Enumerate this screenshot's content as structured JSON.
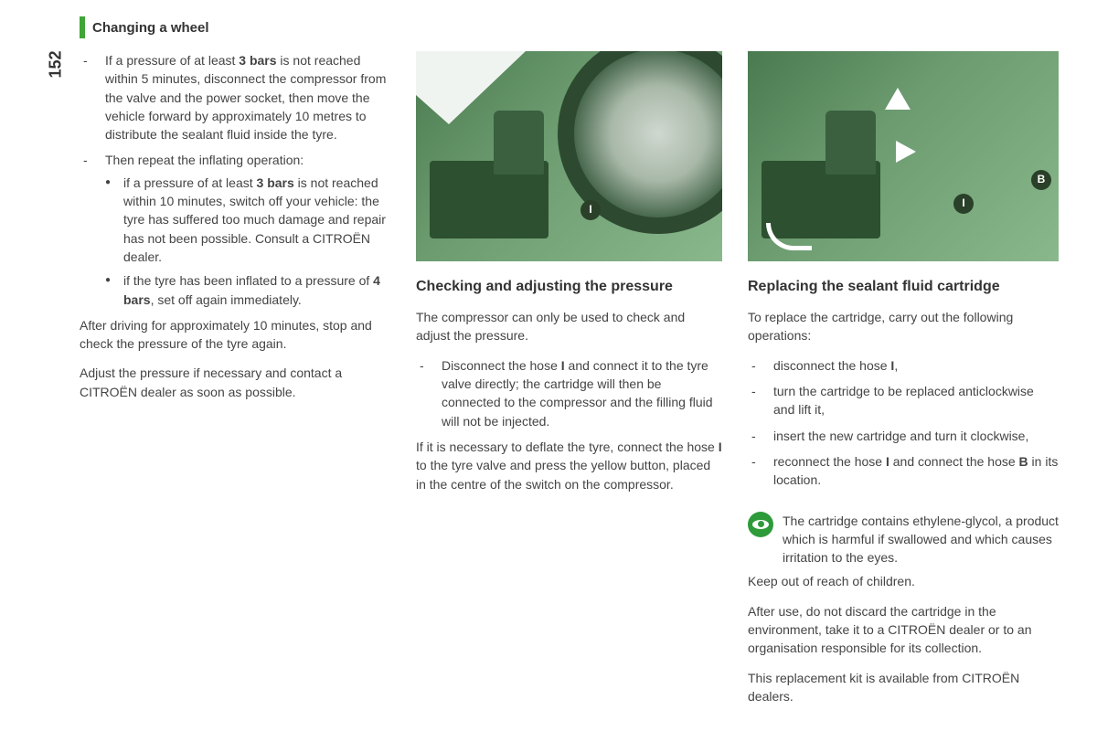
{
  "page_number": "152",
  "header": "Changing a wheel",
  "col1": {
    "item1_pre": "If a pressure of at least ",
    "item1_b1": "3 bars",
    "item1_post": " is not reached within 5 minutes, disconnect the compressor from the valve and the power socket, then move the vehicle forward by approximately 10 metres to distribute the sealant fluid inside the tyre.",
    "item2": "Then repeat the inflating operation:",
    "sub1_pre": "if a pressure of at least ",
    "sub1_b": "3 bars",
    "sub1_post": " is not reached within 10 minutes, switch off your vehicle: the tyre has suffered too much damage and repair has not been possible. Consult a CITROËN dealer.",
    "sub2_pre": "if the tyre has been inflated to a pressure of ",
    "sub2_b": "4 bars",
    "sub2_post": ", set off again immediately.",
    "para1": "After driving for approximately 10 minutes, stop and check the pressure of the tyre again.",
    "para2": "Adjust the pressure if necessary and contact a CITROËN dealer as soon as possible."
  },
  "col2": {
    "heading": "Checking and adjusting the pressure",
    "para1": "The compressor can only be used to check and adjust the pressure.",
    "li1_pre": "Disconnect the hose ",
    "li1_b": "I",
    "li1_post": " and connect it to the tyre valve directly; the cartridge will then be connected to the compressor and the filling fluid will not be injected.",
    "para2_pre": "If it is necessary to deflate the tyre, connect the hose ",
    "para2_b": "I",
    "para2_post": " to the tyre valve and press the yellow button, placed in the centre of the switch on the compressor."
  },
  "col3": {
    "heading": "Replacing the sealant fluid cartridge",
    "intro": "To replace the cartridge, carry out the following operations:",
    "li1_pre": "disconnect the hose ",
    "li1_b": "I",
    "li1_post": ",",
    "li2": "turn the cartridge to be replaced anticlockwise and lift it,",
    "li3": "insert the new cartridge and turn it clockwise,",
    "li4_pre": "reconnect the hose ",
    "li4_b1": "I",
    "li4_mid": " and connect the hose ",
    "li4_b2": "B",
    "li4_post": " in its location.",
    "warn1": "The cartridge contains ethylene-glycol, a product which is harmful if swallowed and which causes irritation to the eyes.",
    "warn2": "Keep out of reach of children.",
    "warn3": "After use, do not discard the cartridge in the environment, take it to a CITROËN dealer or to an organisation responsible for its collection.",
    "warn4": "This replacement kit is available from CITROËN dealers."
  },
  "labels": {
    "I": "I",
    "B": "B"
  },
  "colors": {
    "accent_green": "#3fa535",
    "illustration_dark": "#2d5030",
    "illustration_mid": "#6b9b6f",
    "text": "#333333"
  }
}
